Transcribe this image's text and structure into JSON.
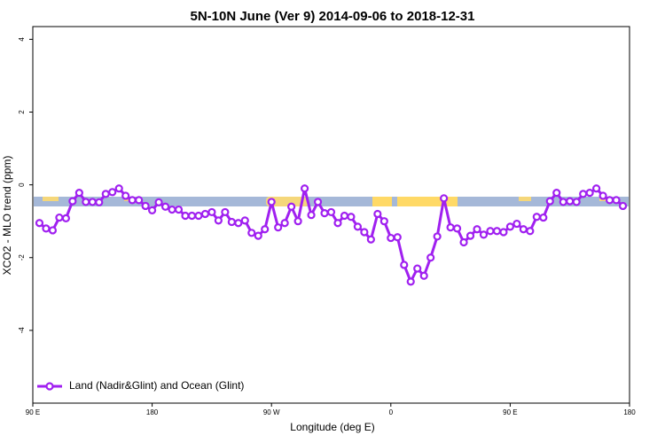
{
  "chart_data": {
    "type": "line",
    "title": "5N-10N June (Ver 9)   2014-09-06 to 2018-12-31",
    "x_label": "Longitude (deg E)",
    "y_label": "XCO2 - MLO trend (ppm)",
    "x": [
      95,
      100,
      105,
      110,
      115,
      120,
      125,
      130,
      135,
      140,
      145,
      150,
      155,
      160,
      165,
      170,
      175,
      180,
      185,
      190,
      195,
      200,
      205,
      210,
      215,
      220,
      225,
      230,
      235,
      240,
      245,
      250,
      255,
      260,
      265,
      270,
      275,
      280,
      285,
      290,
      295,
      300,
      305,
      310,
      315,
      320,
      325,
      330,
      335,
      340,
      345,
      350,
      355,
      360,
      365,
      370,
      375,
      380,
      385,
      390,
      395,
      400,
      405,
      410,
      415,
      420,
      425,
      430,
      435,
      440,
      445,
      450,
      455,
      460,
      465,
      470,
      475,
      480,
      485,
      490,
      495,
      500,
      505,
      510,
      515,
      520,
      525,
      530,
      535
    ],
    "series": [
      {
        "name": "Land (Nadir&Glint) and Ocean (Glint)",
        "color": "#a020f0",
        "values": [
          -1.05,
          -1.2,
          -1.25,
          -0.9,
          -0.92,
          -0.45,
          -0.22,
          -0.47,
          -0.47,
          -0.48,
          -0.25,
          -0.2,
          -0.1,
          -0.3,
          -0.42,
          -0.42,
          -0.58,
          -0.7,
          -0.48,
          -0.6,
          -0.68,
          -0.68,
          -0.85,
          -0.85,
          -0.85,
          -0.8,
          -0.75,
          -0.98,
          -0.75,
          -1.02,
          -1.05,
          -0.98,
          -1.32,
          -1.4,
          -1.22,
          -0.47,
          -1.17,
          -1.05,
          -0.6,
          -1.0,
          -0.1,
          -0.83,
          -0.47,
          -0.78,
          -0.75,
          -1.05,
          -0.85,
          -0.88,
          -1.15,
          -1.3,
          -1.5,
          -0.8,
          -1.0,
          -1.46,
          -1.44,
          -2.2,
          -2.66,
          -2.3,
          -2.5,
          -2.0,
          -1.42,
          -0.37,
          -1.17,
          -1.2,
          -1.58,
          -1.4,
          -1.22,
          -1.37,
          -1.27,
          -1.27,
          -1.3,
          -1.15,
          -1.07,
          -1.22,
          -1.27,
          -0.88,
          -0.9,
          -0.45,
          -0.22,
          -0.47,
          -0.45,
          -0.47,
          -0.25,
          -0.22,
          -0.1,
          -0.3,
          -0.42,
          -0.42,
          -0.58
        ]
      }
    ],
    "xlim": [
      90,
      540
    ],
    "xticks": [
      {
        "value": 90,
        "label": "90 E"
      },
      180,
      {
        "value": 270,
        "label": "90 W"
      },
      {
        "value": 360,
        "label": "0"
      },
      {
        "value": 450,
        "label": "90 E"
      },
      {
        "value": 540,
        "label": "180"
      }
    ],
    "ylim": [
      -6,
      4.35
    ],
    "yticks": [
      -4,
      -2,
      0,
      2,
      4
    ],
    "legend": "bottom-left"
  }
}
